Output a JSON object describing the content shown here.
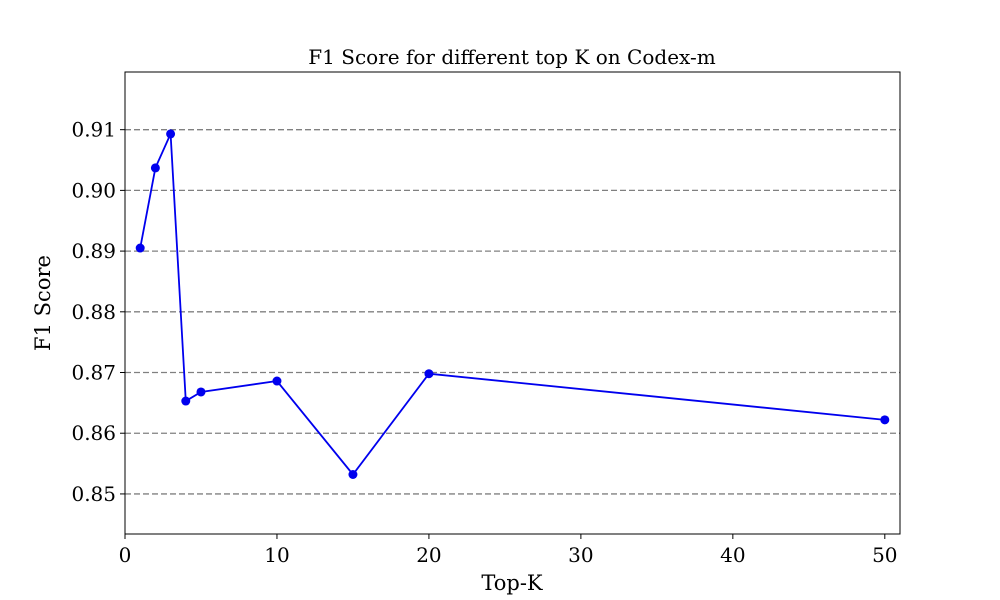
{
  "chart_data": {
    "type": "line",
    "title": "F1 Score for different top K on Codex-m",
    "xlabel": "Top-K",
    "ylabel": "F1 Score",
    "xlim": [
      0,
      51
    ],
    "ylim": [
      0.8434,
      0.9195
    ],
    "xticks": [
      0,
      10,
      20,
      30,
      40,
      50
    ],
    "xtick_labels": [
      "0",
      "10",
      "20",
      "30",
      "40",
      "50"
    ],
    "yticks": [
      0.85,
      0.86,
      0.87,
      0.88,
      0.89,
      0.9,
      0.91
    ],
    "ytick_labels": [
      "0.85",
      "0.86",
      "0.87",
      "0.88",
      "0.89",
      "0.90",
      "0.91"
    ],
    "grid": "horizontal-dashed",
    "legend": "none",
    "series": [
      {
        "color": "#0000ee",
        "marker": "circle",
        "x": [
          1,
          2,
          3,
          4,
          5,
          10,
          15,
          20,
          50
        ],
        "y": [
          0.8905,
          0.9037,
          0.9093,
          0.8653,
          0.8668,
          0.8686,
          0.8532,
          0.8698,
          0.8622
        ]
      }
    ]
  }
}
